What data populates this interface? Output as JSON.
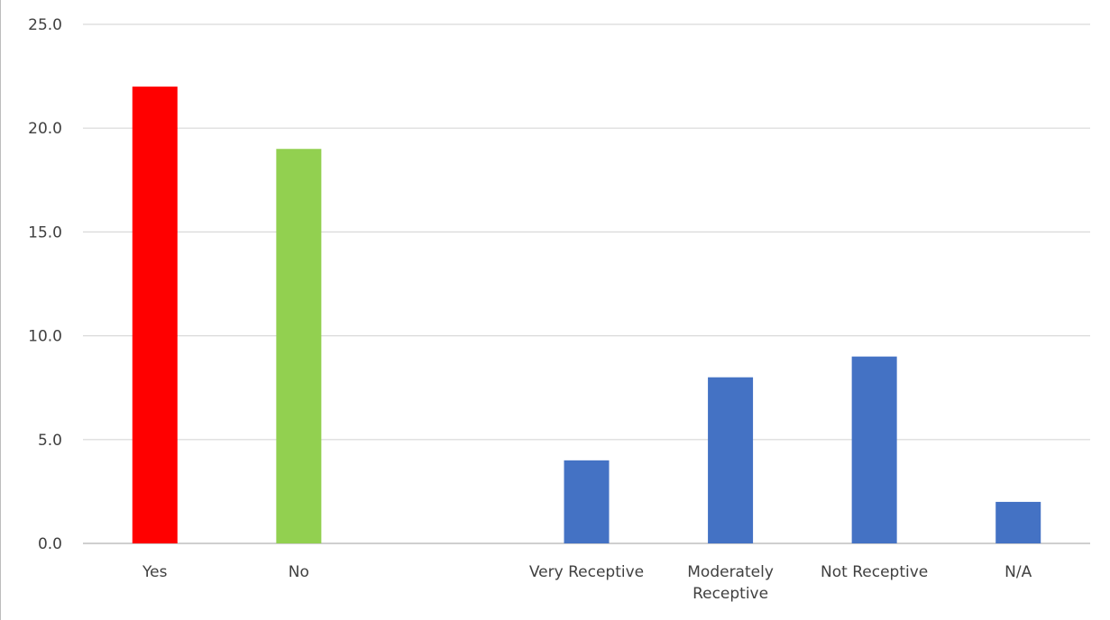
{
  "chart_data": {
    "type": "bar",
    "categories": [
      "Yes",
      "No",
      "",
      "Very Receptive",
      "Moderately Receptive",
      "Not Receptive",
      "N/A"
    ],
    "category_lines": [
      [
        "Yes"
      ],
      [
        "No"
      ],
      [],
      [
        "Very Receptive"
      ],
      [
        "Moderately",
        "Receptive"
      ],
      [
        "Not Receptive"
      ],
      [
        "N/A"
      ]
    ],
    "values": [
      22.0,
      19.0,
      null,
      4.0,
      8.0,
      9.0,
      2.0
    ],
    "colors": [
      "#ff0000",
      "#92d050",
      null,
      "#4472c4",
      "#4472c4",
      "#4472c4",
      "#4472c4"
    ],
    "yticks": [
      "0.0",
      "5.0",
      "10.0",
      "15.0",
      "20.0",
      "25.0"
    ],
    "ylim": [
      0,
      25
    ],
    "title": "",
    "xlabel": "",
    "ylabel": "",
    "grid": true,
    "legend": "none",
    "gridline_color": "#d9d9d9",
    "axis_color": "#bfbfbf"
  }
}
